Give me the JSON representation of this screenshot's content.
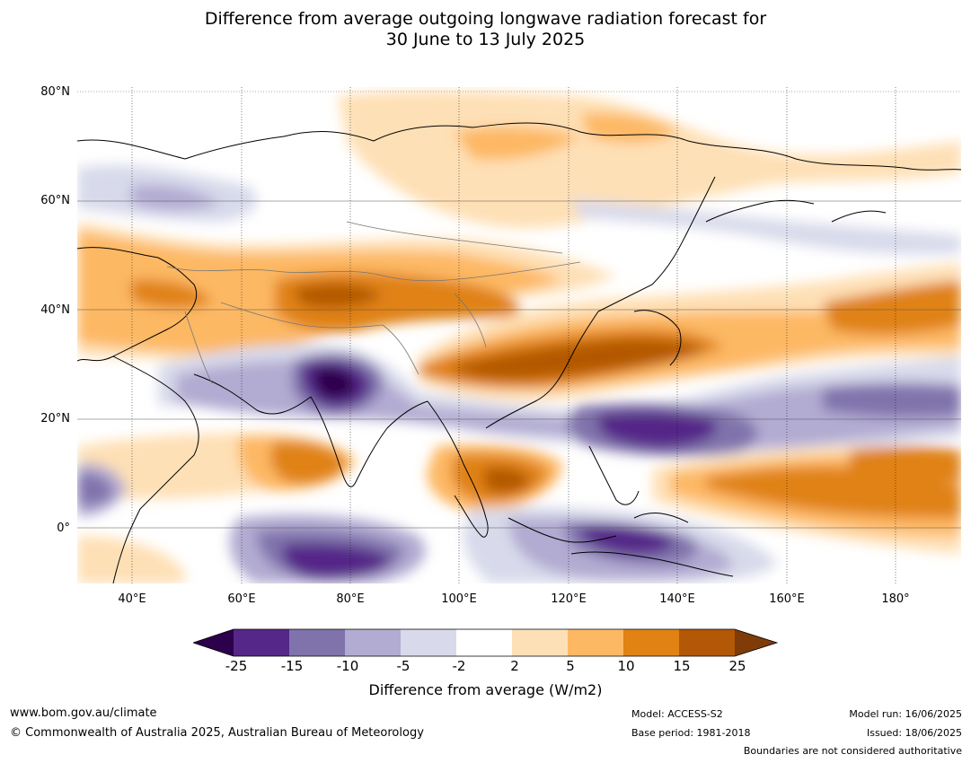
{
  "title_line1": "Difference from average outgoing longwave radiation forecast for",
  "title_line2": "30 June to 13 July 2025",
  "map": {
    "lat_labels": [
      "80°N",
      "60°N",
      "40°N",
      "20°N",
      "0°"
    ],
    "lon_labels": [
      "40°E",
      "60°E",
      "80°E",
      "100°E",
      "120°E",
      "140°E",
      "160°E",
      "180°"
    ],
    "lon_range": [
      30,
      192
    ],
    "lat_range": [
      -10,
      81
    ]
  },
  "colorbar": {
    "ticks": [
      "-25",
      "-15",
      "-10",
      "-5",
      "-2",
      "2",
      "5",
      "10",
      "15",
      "25"
    ],
    "colors": [
      "#2d004b",
      "#542788",
      "#8073ac",
      "#b2abd2",
      "#d8daeb",
      "#ffffff",
      "#fee0b6",
      "#fdb863",
      "#e08214",
      "#b35806",
      "#7f3b08"
    ],
    "label": "Difference from average (W/m2)"
  },
  "footer": {
    "website": "www.bom.gov.au/climate",
    "copyright": "© Commonwealth of Australia 2025, Australian Bureau of Meteorology",
    "model": "Model: ACCESS-S2",
    "base_period": "Base period: 1981-2018",
    "model_run": "Model run: 16/06/2025",
    "issued": "Issued: 18/06/2025",
    "disclaimer": "Boundaries are not considered authoritative"
  }
}
